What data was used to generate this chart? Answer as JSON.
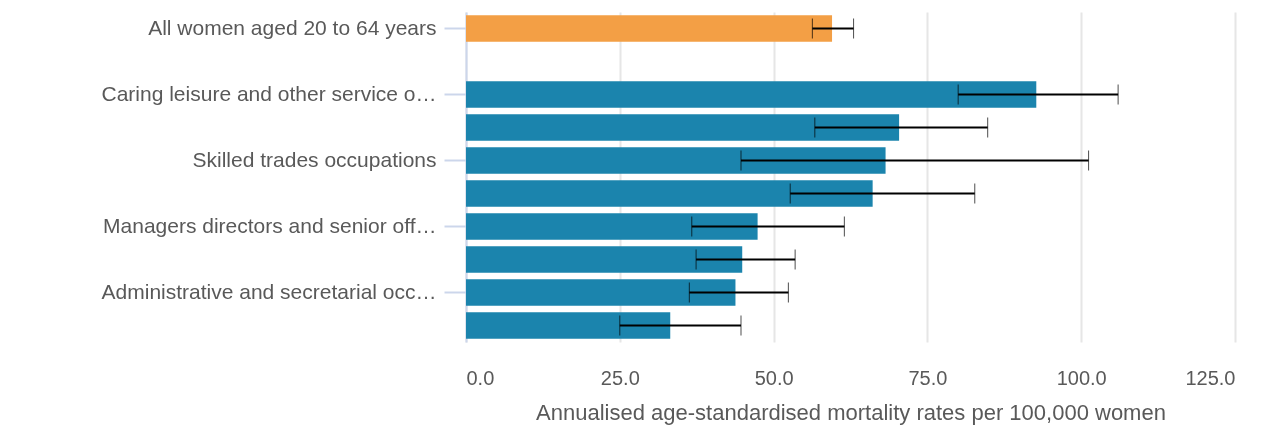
{
  "chart_data": {
    "type": "bar",
    "orientation": "horizontal",
    "xlabel": "Annualised age-standardised mortality rates per 100,000 women",
    "categories": [
      "All women aged 20 to 64 years",
      null,
      "Caring leisure and other service o…",
      null,
      "Skilled trades occupations",
      null,
      "Managers directors and senior off…",
      null,
      "Administrative and secretarial occ…",
      null
    ],
    "values": [
      59.5,
      null,
      92.7,
      70.4,
      68.2,
      66.1,
      47.4,
      44.9,
      43.8,
      33.2
    ],
    "colors": [
      "#f39f45",
      null,
      "#1b84ad",
      "#1b84ad",
      "#1b84ad",
      "#1b84ad",
      "#1b84ad",
      "#1b84ad",
      "#1b84ad",
      "#1b84ad"
    ],
    "errors": [
      [
        56.3,
        63.0
      ],
      null,
      [
        80.0,
        106.0
      ],
      [
        56.7,
        84.8
      ],
      [
        44.7,
        101.2
      ],
      [
        52.7,
        82.7
      ],
      [
        36.7,
        61.5
      ],
      [
        37.4,
        53.5
      ],
      [
        36.3,
        52.4
      ],
      [
        25.0,
        44.7
      ]
    ],
    "xlim": [
      0,
      125
    ],
    "xticks": [
      {
        "value": 0,
        "label": "0.0"
      },
      {
        "value": 25,
        "label": "25.0"
      },
      {
        "value": 50,
        "label": "50.0"
      },
      {
        "value": 75,
        "label": "75.0"
      },
      {
        "value": 100,
        "label": "100.0"
      },
      {
        "value": 125,
        "label": "125.0"
      }
    ],
    "grid": true
  }
}
